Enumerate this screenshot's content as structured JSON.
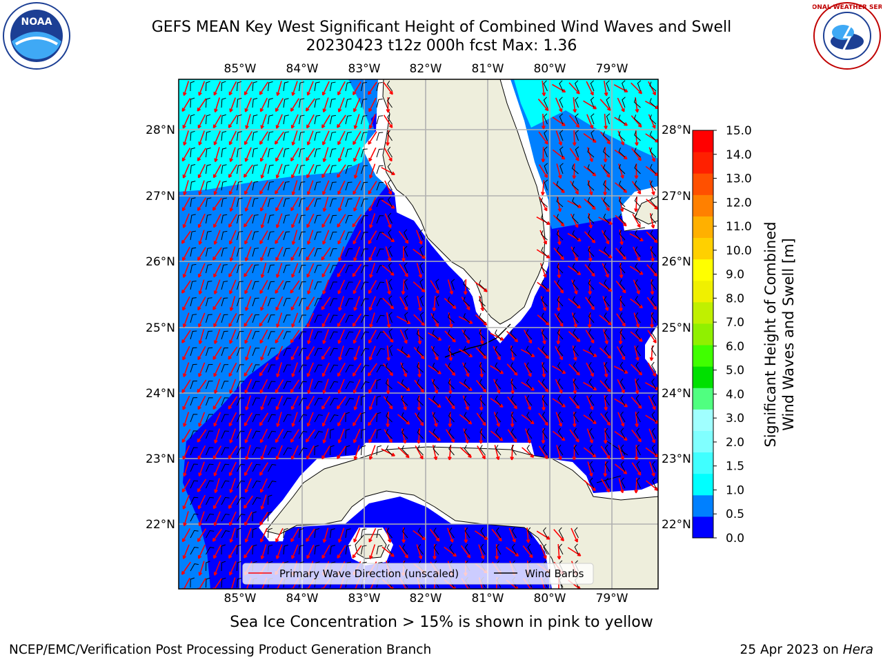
{
  "header": {
    "title_line1": "GEFS MEAN Key West Significant Height of Combined Wind Waves and Swell",
    "title_line2": "20230423 t12z 000h fcst   Max: 1.36"
  },
  "map": {
    "lon_labels": [
      "85°W",
      "84°W",
      "83°W",
      "82°W",
      "81°W",
      "80°W",
      "79°W"
    ],
    "lat_labels": [
      "28°N",
      "27°N",
      "26°N",
      "25°N",
      "24°N",
      "23°N",
      "22°N"
    ],
    "colors": {
      "land": "#eeeedc",
      "ocean_0_05": "#0000ff",
      "ocean_05_1": "#0080ff",
      "ocean_1_15": "#00ffff",
      "wave_arrows": "#ff0000",
      "wind_barbs": "#000000",
      "grid": "#b0b0b0"
    },
    "legend": {
      "wave": "Primary Wave Direction (unscaled)",
      "wind": "Wind Barbs"
    }
  },
  "colorbar": {
    "label_line1": "Significant Height of Combined",
    "label_line2": "Wind Waves and Swell [m]",
    "ticks": [
      "0.0",
      "0.5",
      "1.0",
      "1.5",
      "2.0",
      "3.0",
      "4.0",
      "5.0",
      "6.0",
      "7.0",
      "8.0",
      "9.0",
      "10.0",
      "11.0",
      "12.0",
      "13.0",
      "14.0",
      "15.0"
    ],
    "colors": [
      "#0000ff",
      "#0080ff",
      "#00ffff",
      "#40ffff",
      "#80ffff",
      "#a0ffff",
      "#50ff80",
      "#00e000",
      "#40ff00",
      "#90f000",
      "#c0f000",
      "#f0f000",
      "#ffff00",
      "#ffd000",
      "#ffb000",
      "#ff8000",
      "#ff5000",
      "#ff2000",
      "#ff0000"
    ]
  },
  "footer": {
    "note": "Sea Ice Concentration > 15% is shown in pink to yellow",
    "credit": "NCEP/EMC/Verification Post Processing Product Generation Branch",
    "date": "25 Apr 2023 on ",
    "machine": "Hera"
  },
  "logos": {
    "noaa_text": "NOAA",
    "nws_text": "NATIONAL WEATHER SERVICE"
  }
}
